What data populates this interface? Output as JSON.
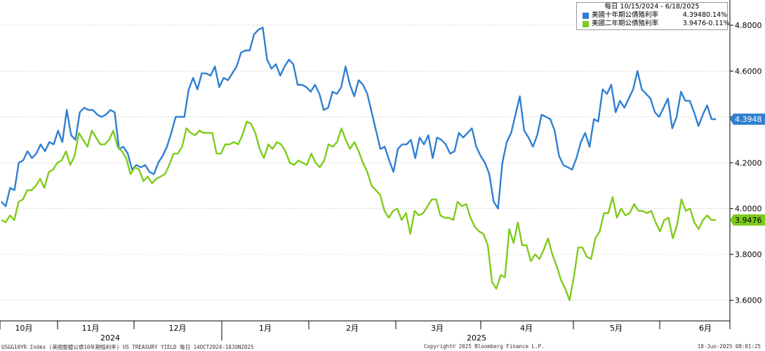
{
  "legend": {
    "header": "每日  10/15/2024 - 6/18/2025",
    "items": [
      {
        "name": "美國十年期公債殖利率",
        "value": "4.3948",
        "change": "0.14%",
        "color": "#2f7fd1"
      },
      {
        "name": "美國二年期公債殖利率",
        "value": "3.9476",
        "change": "-0.11%",
        "color": "#7ecb1c"
      }
    ]
  },
  "footer": {
    "left": "USGG10YR Index (美國整體公債10年期殖利率) US TREASURY YIELD  每日 14OCT2024-18JUN2025",
    "center": "Copyright© 2025 Bloomberg Finance L.P.",
    "right": "18-Jun-2025 08:01:25"
  },
  "chart_data": {
    "type": "line",
    "x_axis": {
      "months": [
        "10月",
        "11月",
        "12月",
        "1月",
        "2月",
        "3月",
        "4月",
        "5月",
        "6月"
      ],
      "years": [
        "2024",
        "2025"
      ]
    },
    "y_axis": {
      "ticks": [
        "3.6000",
        "3.8000",
        "4.0000",
        "4.2000",
        "4.4000",
        "4.6000",
        "4.8000"
      ],
      "ylim": [
        3.51,
        4.91
      ],
      "side": "right"
    },
    "grid": "horizontal dotted",
    "legend_position": "top-right",
    "series": [
      {
        "name": "美國十年期公債殖利率",
        "color": "#2f7fd1",
        "last_value_label": "4.3948",
        "values": [
          4.03,
          4.01,
          4.09,
          4.08,
          4.2,
          4.21,
          4.25,
          4.22,
          4.24,
          4.28,
          4.25,
          4.29,
          4.28,
          4.34,
          4.29,
          4.43,
          4.32,
          4.3,
          4.42,
          4.44,
          4.43,
          4.43,
          4.41,
          4.4,
          4.41,
          4.43,
          4.42,
          4.26,
          4.27,
          4.24,
          4.17,
          4.19,
          4.18,
          4.19,
          4.16,
          4.15,
          4.2,
          4.23,
          4.27,
          4.33,
          4.4,
          4.4,
          4.4,
          4.52,
          4.57,
          4.52,
          4.59,
          4.59,
          4.58,
          4.62,
          4.53,
          4.57,
          4.56,
          4.59,
          4.62,
          4.68,
          4.69,
          4.69,
          4.76,
          4.78,
          4.79,
          4.65,
          4.61,
          4.63,
          4.58,
          4.62,
          4.65,
          4.63,
          4.54,
          4.54,
          4.53,
          4.51,
          4.54,
          4.5,
          4.43,
          4.44,
          4.51,
          4.5,
          4.53,
          4.62,
          4.54,
          4.49,
          4.56,
          4.54,
          4.5,
          4.42,
          4.34,
          4.26,
          4.27,
          4.21,
          4.16,
          4.26,
          4.28,
          4.28,
          4.3,
          4.22,
          4.31,
          4.28,
          4.32,
          4.22,
          4.31,
          4.3,
          4.28,
          4.24,
          4.25,
          4.33,
          4.31,
          4.33,
          4.35,
          4.27,
          4.23,
          4.2,
          4.15,
          4.03,
          4.0,
          4.2,
          4.29,
          4.33,
          4.41,
          4.49,
          4.34,
          4.31,
          4.27,
          4.32,
          4.41,
          4.4,
          4.39,
          4.34,
          4.23,
          4.19,
          4.18,
          4.17,
          4.22,
          4.29,
          4.33,
          4.27,
          4.39,
          4.38,
          4.52,
          4.5,
          4.54,
          4.42,
          4.47,
          4.44,
          4.48,
          4.52,
          4.6,
          4.52,
          4.5,
          4.48,
          4.42,
          4.4,
          4.44,
          4.48,
          4.35,
          4.4,
          4.51,
          4.47,
          4.47,
          4.42,
          4.36,
          4.41,
          4.45,
          4.39,
          4.39
        ]
      },
      {
        "name": "美國二年期公債殖利率",
        "color": "#7ecb1c",
        "last_value_label": "3.9476",
        "values": [
          3.95,
          3.94,
          3.97,
          3.95,
          4.03,
          4.04,
          4.08,
          4.08,
          4.1,
          4.13,
          4.09,
          4.16,
          4.17,
          4.2,
          4.21,
          4.25,
          4.19,
          4.23,
          4.33,
          4.3,
          4.27,
          4.34,
          4.31,
          4.28,
          4.28,
          4.3,
          4.34,
          4.27,
          4.25,
          4.22,
          4.15,
          4.18,
          4.17,
          4.12,
          4.14,
          4.11,
          4.13,
          4.14,
          4.15,
          4.19,
          4.24,
          4.24,
          4.27,
          4.35,
          4.33,
          4.32,
          4.34,
          4.33,
          4.33,
          4.33,
          4.24,
          4.24,
          4.28,
          4.28,
          4.29,
          4.28,
          4.32,
          4.38,
          4.37,
          4.33,
          4.26,
          4.22,
          4.28,
          4.26,
          4.29,
          4.28,
          4.25,
          4.2,
          4.19,
          4.21,
          4.2,
          4.19,
          4.24,
          4.2,
          4.18,
          4.21,
          4.28,
          4.27,
          4.29,
          4.35,
          4.3,
          4.26,
          4.29,
          4.25,
          4.2,
          4.16,
          4.1,
          4.08,
          4.06,
          3.99,
          3.96,
          3.99,
          4.0,
          3.95,
          3.98,
          3.89,
          3.99,
          3.97,
          3.98,
          4.01,
          4.04,
          4.04,
          3.97,
          3.96,
          3.96,
          3.95,
          4.03,
          4.01,
          4.02,
          3.96,
          3.92,
          3.9,
          3.89,
          3.84,
          3.68,
          3.65,
          3.71,
          3.7,
          3.91,
          3.85,
          3.94,
          3.84,
          3.84,
          3.77,
          3.8,
          3.78,
          3.82,
          3.87,
          3.8,
          3.75,
          3.69,
          3.65,
          3.6,
          3.7,
          3.83,
          3.83,
          3.79,
          3.78,
          3.87,
          3.9,
          3.98,
          3.98,
          4.05,
          3.96,
          4.0,
          3.97,
          3.98,
          4.02,
          3.99,
          3.99,
          3.98,
          3.99,
          3.94,
          3.9,
          3.95,
          3.96,
          3.87,
          3.93,
          4.04,
          3.99,
          4.0,
          3.94,
          3.91,
          3.95,
          3.97,
          3.95,
          3.95
        ]
      }
    ]
  }
}
